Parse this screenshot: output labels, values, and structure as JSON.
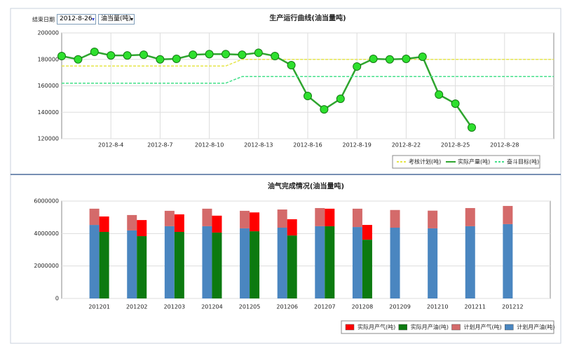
{
  "controls": {
    "end_date_label": "结束日期",
    "end_date": "2012-8-26",
    "unit": "油当量(吨)"
  },
  "chart_data": [
    {
      "type": "line",
      "title": "生产运行曲线(油当量吨)",
      "categories": [
        null,
        null,
        null,
        "2012-8-4",
        null,
        null,
        "2012-8-7",
        null,
        null,
        "2012-8-10",
        null,
        null,
        "2012-8-13",
        null,
        null,
        "2012-8-16",
        null,
        null,
        "2012-8-19",
        null,
        null,
        "2012-8-22",
        null,
        null,
        "2012-8-25",
        null,
        null,
        "2012-8-28",
        null,
        null,
        null
      ],
      "series": [
        {
          "name": "考核计划(吨)",
          "color": "#e6e64a",
          "dashed": true,
          "values": [
            175000,
            175000,
            175000,
            175000,
            175000,
            175000,
            175000,
            175000,
            175000,
            175000,
            175000,
            180000,
            180000,
            180000,
            180000,
            180000,
            180000,
            180000,
            180000,
            180000,
            180000,
            180000,
            180000,
            180000,
            180000,
            180000,
            180000,
            180000,
            180000,
            180000,
            180000
          ]
        },
        {
          "name": "实际产量(吨)",
          "color": "#2fa52f",
          "markers": true,
          "values": [
            182500,
            180000,
            185700,
            183000,
            183000,
            183500,
            180000,
            180400,
            183500,
            184000,
            184000,
            183500,
            185000,
            182500,
            175600,
            152300,
            142200,
            150200,
            174600,
            180400,
            180000,
            180400,
            182000,
            153400,
            146500,
            128500,
            null,
            null,
            null,
            null,
            null
          ]
        },
        {
          "name": "奋斗目标(吨)",
          "color": "#44e08a",
          "dashed": true,
          "values": [
            162000,
            162000,
            162000,
            162000,
            162000,
            162000,
            162000,
            162000,
            162000,
            162000,
            162000,
            167000,
            167000,
            167000,
            167000,
            167000,
            167000,
            167000,
            167000,
            167000,
            167000,
            167000,
            167000,
            167000,
            167000,
            167000,
            167000,
            167000,
            167000,
            167000,
            167000
          ]
        }
      ],
      "ylim": [
        120000,
        200000
      ],
      "yticks": [
        120000,
        140000,
        160000,
        180000,
        200000
      ],
      "grid": true,
      "legend": "bottom-right"
    },
    {
      "type": "bar",
      "title": "油气完成情况(油当量吨)",
      "categories": [
        "201201",
        "201202",
        "201203",
        "201204",
        "201205",
        "201206",
        "201207",
        "201208",
        "201209",
        "201210",
        "201211",
        "201212"
      ],
      "series": [
        {
          "name": "实际月产气(吨)",
          "color": "#ff0000",
          "values": [
            950000,
            990000,
            1080000,
            1040000,
            1160000,
            1000000,
            1080000,
            910000,
            null,
            null,
            null,
            null
          ]
        },
        {
          "name": "实际月产油(吨)",
          "color": "#0c7a10",
          "values": [
            4100000,
            3840000,
            4100000,
            4060000,
            4140000,
            3880000,
            4450000,
            3620000,
            null,
            null,
            null,
            null
          ]
        },
        {
          "name": "计划月产气(吨)",
          "color": "#d46a6a",
          "values": [
            1000000,
            950000,
            950000,
            1080000,
            1080000,
            1120000,
            1120000,
            1130000,
            1090000,
            1090000,
            1120000,
            1120000
          ]
        },
        {
          "name": "计划月产油(吨)",
          "color": "#4a86c0",
          "values": [
            4530000,
            4190000,
            4450000,
            4450000,
            4320000,
            4360000,
            4450000,
            4400000,
            4360000,
            4320000,
            4450000,
            4580000
          ]
        }
      ],
      "ylim": [
        0,
        6000000
      ],
      "yticks": [
        0,
        2000000,
        4000000,
        6000000
      ],
      "grid": true,
      "legend": "bottom-right"
    }
  ]
}
